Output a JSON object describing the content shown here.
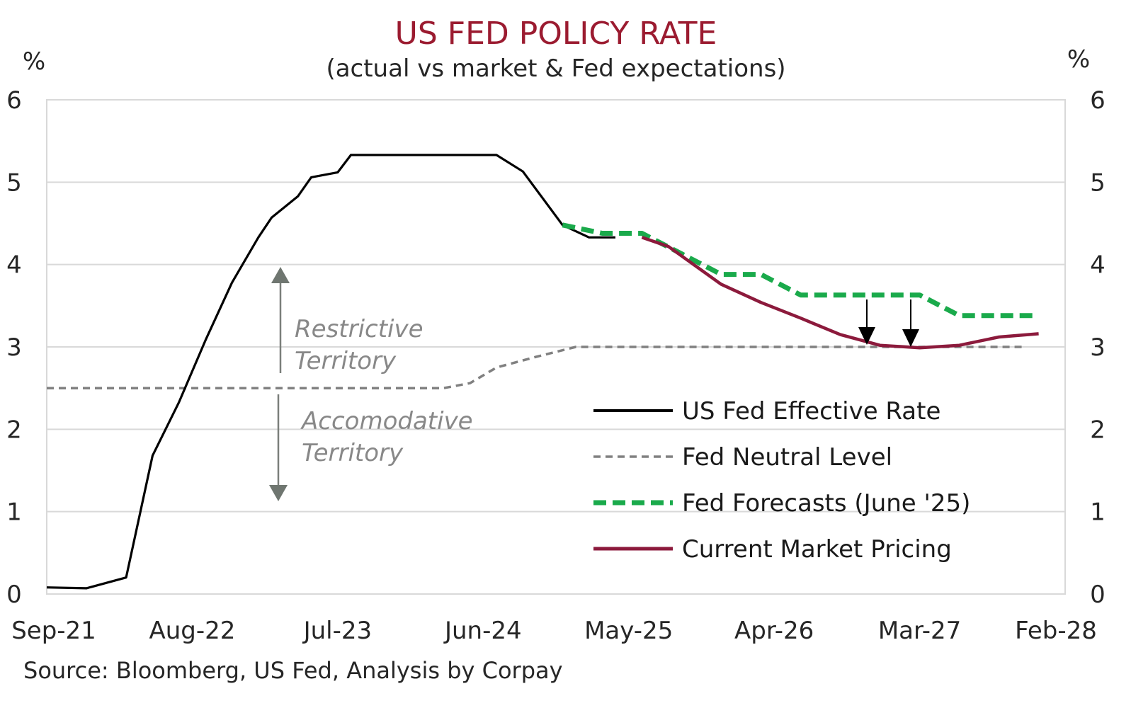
{
  "chart_data": {
    "type": "line",
    "title": "US FED POLICY RATE",
    "subtitle": "(actual vs market & Fed expectations)",
    "y_unit_left": "%",
    "y_unit_right": "%",
    "ylim": [
      0,
      6
    ],
    "yticks": [
      0,
      1,
      2,
      3,
      4,
      5,
      6
    ],
    "grid": "horizontal",
    "xlim": [
      "Sep-21",
      "Feb-28"
    ],
    "xtick_labels": [
      "Sep-21",
      "Aug-22",
      "Jul-23",
      "Jun-24",
      "May-25",
      "Apr-26",
      "Mar-27",
      "Feb-28"
    ],
    "legend_position": "bottom-right inside plot",
    "series": [
      {
        "name": "US Fed Effective Rate",
        "color": "#000000",
        "style": "solid",
        "points": [
          [
            "Sep-21",
            0.08
          ],
          [
            "Dec-21",
            0.07
          ],
          [
            "Mar-22",
            0.2
          ],
          [
            "May-22",
            1.68
          ],
          [
            "Jul-22",
            2.33
          ],
          [
            "Sep-22",
            3.08
          ],
          [
            "Nov-22",
            3.78
          ],
          [
            "Jan-23",
            4.33
          ],
          [
            "Feb-23",
            4.57
          ],
          [
            "Apr-23",
            4.83
          ],
          [
            "May-23",
            5.06
          ],
          [
            "Jul-23",
            5.12
          ],
          [
            "Aug-23",
            5.33
          ],
          [
            "Jul-24",
            5.33
          ],
          [
            "Sep-24",
            5.13
          ],
          [
            "Dec-24",
            4.48
          ],
          [
            "Feb-25",
            4.33
          ],
          [
            "Apr-25",
            4.33
          ]
        ]
      },
      {
        "name": "Fed Neutral Level",
        "color": "#808080",
        "style": "dashed",
        "points": [
          [
            "Sep-21",
            2.5
          ],
          [
            "Mar-24",
            2.5
          ],
          [
            "May-24",
            2.56
          ],
          [
            "Jul-24",
            2.75
          ],
          [
            "Oct-24",
            2.88
          ],
          [
            "Jan-25",
            3.0
          ],
          [
            "Nov-27",
            3.0
          ]
        ]
      },
      {
        "name": "Fed Forecasts (June '25)",
        "color": "#1aaa4b",
        "style": "dashed",
        "points": [
          [
            "Dec-24",
            4.48
          ],
          [
            "Mar-25",
            4.38
          ],
          [
            "Jun-25",
            4.38
          ],
          [
            "Sep-25",
            4.13
          ],
          [
            "Dec-25",
            3.88
          ],
          [
            "Mar-26",
            3.88
          ],
          [
            "Jun-26",
            3.63
          ],
          [
            "Dec-26",
            3.63
          ],
          [
            "Mar-27",
            3.63
          ],
          [
            "Jun-27",
            3.38
          ],
          [
            "Dec-27",
            3.38
          ]
        ]
      },
      {
        "name": "Current Market Pricing",
        "color": "#8c1a3c",
        "style": "solid",
        "points": [
          [
            "Jun-25",
            4.33
          ],
          [
            "Aug-25",
            4.22
          ],
          [
            "Dec-25",
            3.76
          ],
          [
            "Mar-26",
            3.54
          ],
          [
            "Jun-26",
            3.35
          ],
          [
            "Sep-26",
            3.15
          ],
          [
            "Dec-26",
            3.02
          ],
          [
            "Mar-27",
            2.99
          ],
          [
            "Jun-27",
            3.02
          ],
          [
            "Sep-27",
            3.12
          ],
          [
            "Dec-27",
            3.16
          ]
        ]
      }
    ],
    "annotations": {
      "restrictive_line1": "Restrictive",
      "restrictive_line2": "Territory",
      "accommodative_line1": "Accomodative",
      "accommodative_line2": "Territory"
    },
    "source": "Source: Bloomberg, US Fed, Analysis by Corpay"
  }
}
